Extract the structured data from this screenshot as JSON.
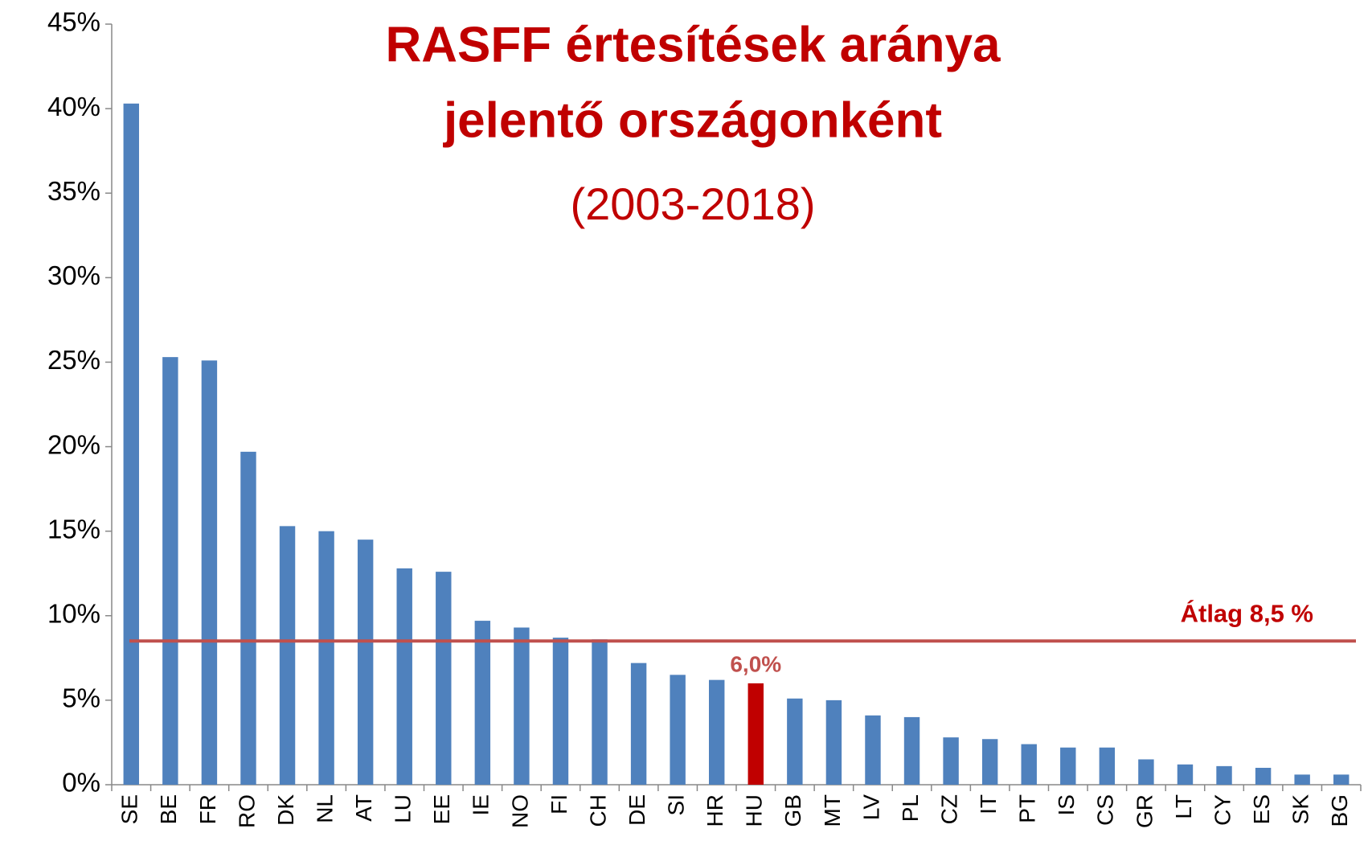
{
  "chart_data": {
    "type": "bar",
    "title": [
      "RASFF értesítések aránya",
      "jelentő országonként"
    ],
    "subtitle": "(2003-2018)",
    "categories": [
      "SE",
      "BE",
      "FR",
      "RO",
      "DK",
      "NL",
      "AT",
      "LU",
      "EE",
      "IE",
      "NO",
      "FI",
      "CH",
      "DE",
      "SI",
      "HR",
      "HU",
      "GB",
      "MT",
      "LV",
      "PL",
      "CZ",
      "IT",
      "PT",
      "IS",
      "CS",
      "GR",
      "LT",
      "CY",
      "ES",
      "SK",
      "BG"
    ],
    "values": [
      40.3,
      25.3,
      25.1,
      19.7,
      15.3,
      15.0,
      14.5,
      12.8,
      12.6,
      9.7,
      9.3,
      8.7,
      8.6,
      7.2,
      6.5,
      6.2,
      6.0,
      5.1,
      5.0,
      4.1,
      4.0,
      2.8,
      2.7,
      2.4,
      2.2,
      2.2,
      1.5,
      1.2,
      1.1,
      1.0,
      0.6,
      0.6
    ],
    "value_labels": [
      null,
      null,
      null,
      null,
      null,
      null,
      null,
      null,
      null,
      null,
      null,
      null,
      null,
      null,
      null,
      null,
      "6,0%",
      null,
      null,
      null,
      null,
      null,
      null,
      null,
      null,
      null,
      null,
      null,
      null,
      null,
      null,
      null
    ],
    "colors": [
      "#4f81bd",
      "#4f81bd",
      "#4f81bd",
      "#4f81bd",
      "#4f81bd",
      "#4f81bd",
      "#4f81bd",
      "#4f81bd",
      "#4f81bd",
      "#4f81bd",
      "#4f81bd",
      "#4f81bd",
      "#4f81bd",
      "#4f81bd",
      "#4f81bd",
      "#4f81bd",
      "#c00000",
      "#4f81bd",
      "#4f81bd",
      "#4f81bd",
      "#4f81bd",
      "#4f81bd",
      "#4f81bd",
      "#4f81bd",
      "#4f81bd",
      "#4f81bd",
      "#4f81bd",
      "#4f81bd",
      "#4f81bd",
      "#4f81bd",
      "#4f81bd",
      "#4f81bd"
    ],
    "reference_line": {
      "value": 8.5,
      "label": "Átlag 8,5 %",
      "color": "#c0504d"
    },
    "ylim": [
      0,
      45
    ],
    "yticks": [
      {
        "value": 0,
        "label": "0%"
      },
      {
        "value": 5,
        "label": "5%"
      },
      {
        "value": 10,
        "label": "10%"
      },
      {
        "value": 15,
        "label": "15%"
      },
      {
        "value": 20,
        "label": "20%"
      },
      {
        "value": 25,
        "label": "25%"
      },
      {
        "value": 30,
        "label": "30%"
      },
      {
        "value": 35,
        "label": "35%"
      },
      {
        "value": 40,
        "label": "40%"
      },
      {
        "value": 45,
        "label": "45%"
      }
    ],
    "grid": false
  }
}
